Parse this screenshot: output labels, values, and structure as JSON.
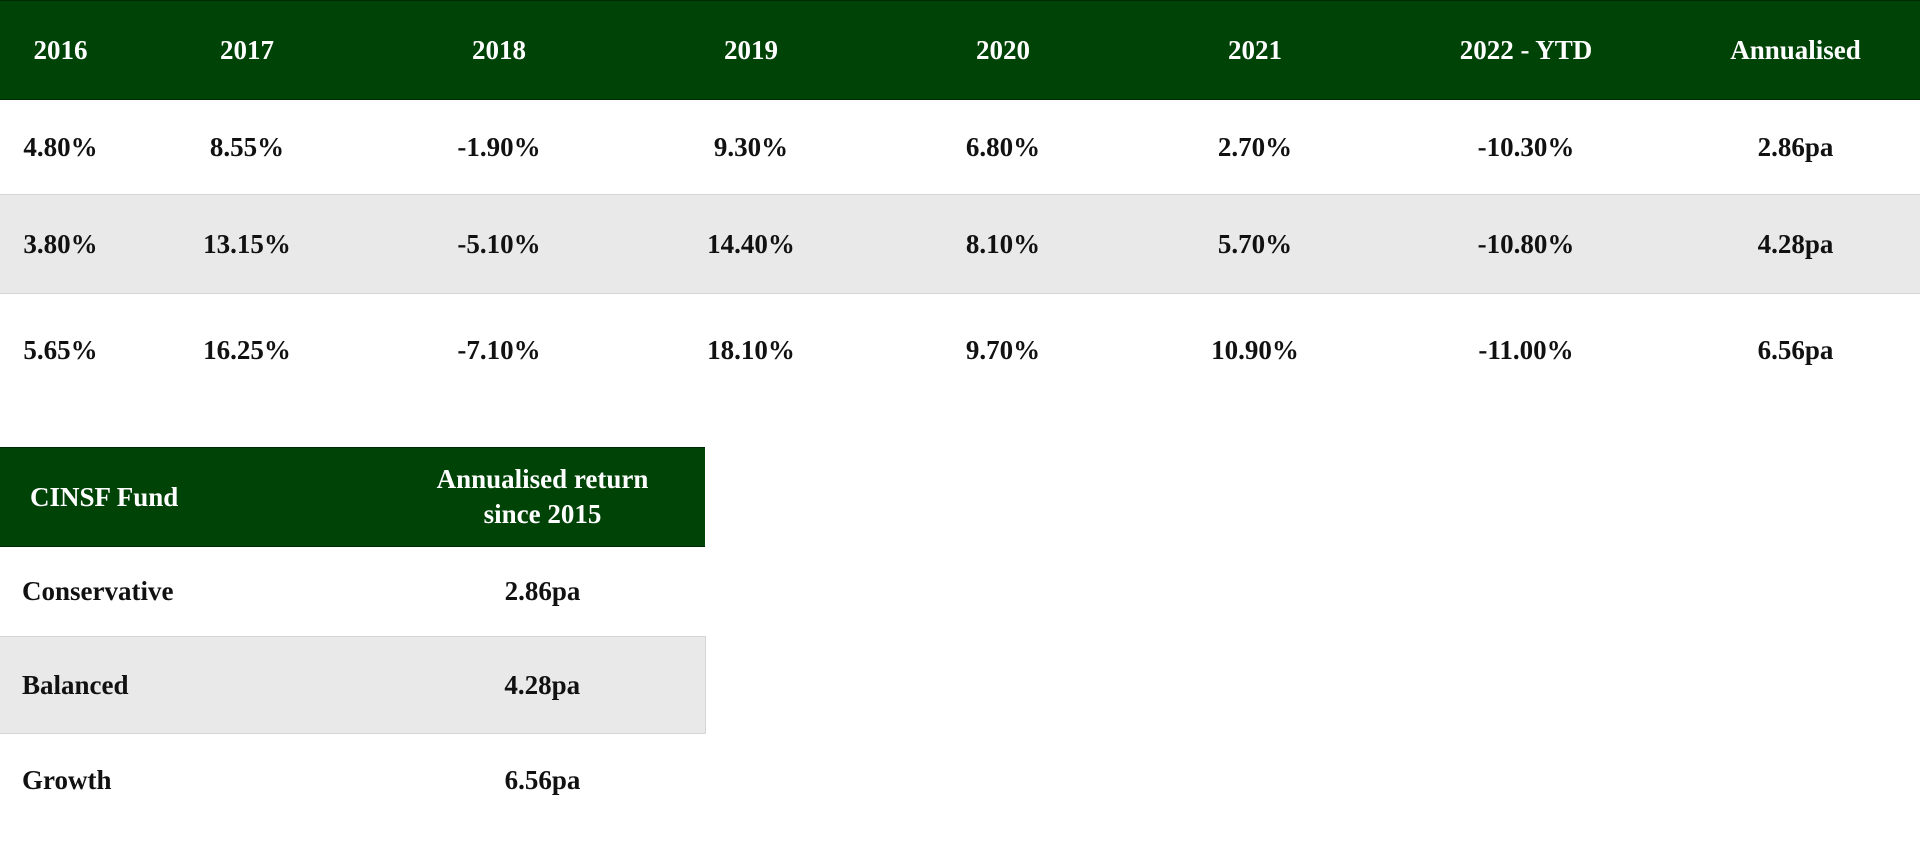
{
  "colors": {
    "header_bg": "#004307",
    "header_text": "#ffffff",
    "stripe_bg": "#e9e9e9"
  },
  "returns_table": {
    "headers": [
      "2016",
      "2017",
      "2018",
      "2019",
      "2020",
      "2021",
      "2022 - YTD",
      "Annualised"
    ],
    "rows": [
      [
        "4.80%",
        "8.55%",
        "-1.90%",
        "9.30%",
        "6.80%",
        "2.70%",
        "-10.30%",
        "2.86pa"
      ],
      [
        "3.80%",
        "13.15%",
        "-5.10%",
        "14.40%",
        "8.10%",
        "5.70%",
        "-10.80%",
        "4.28pa"
      ],
      [
        "5.65%",
        "16.25%",
        "-7.10%",
        "18.10%",
        "9.70%",
        "10.90%",
        "-11.00%",
        "6.56pa"
      ]
    ]
  },
  "annualised_table": {
    "headers": {
      "fund": "CINSF Fund",
      "return_line1": "Annualised return",
      "return_line2": "since 2015"
    },
    "rows": [
      {
        "fund": "Conservative",
        "return": "2.86pa"
      },
      {
        "fund": "Balanced",
        "return": "4.28pa"
      },
      {
        "fund": "Growth",
        "return": "6.56pa"
      }
    ]
  }
}
